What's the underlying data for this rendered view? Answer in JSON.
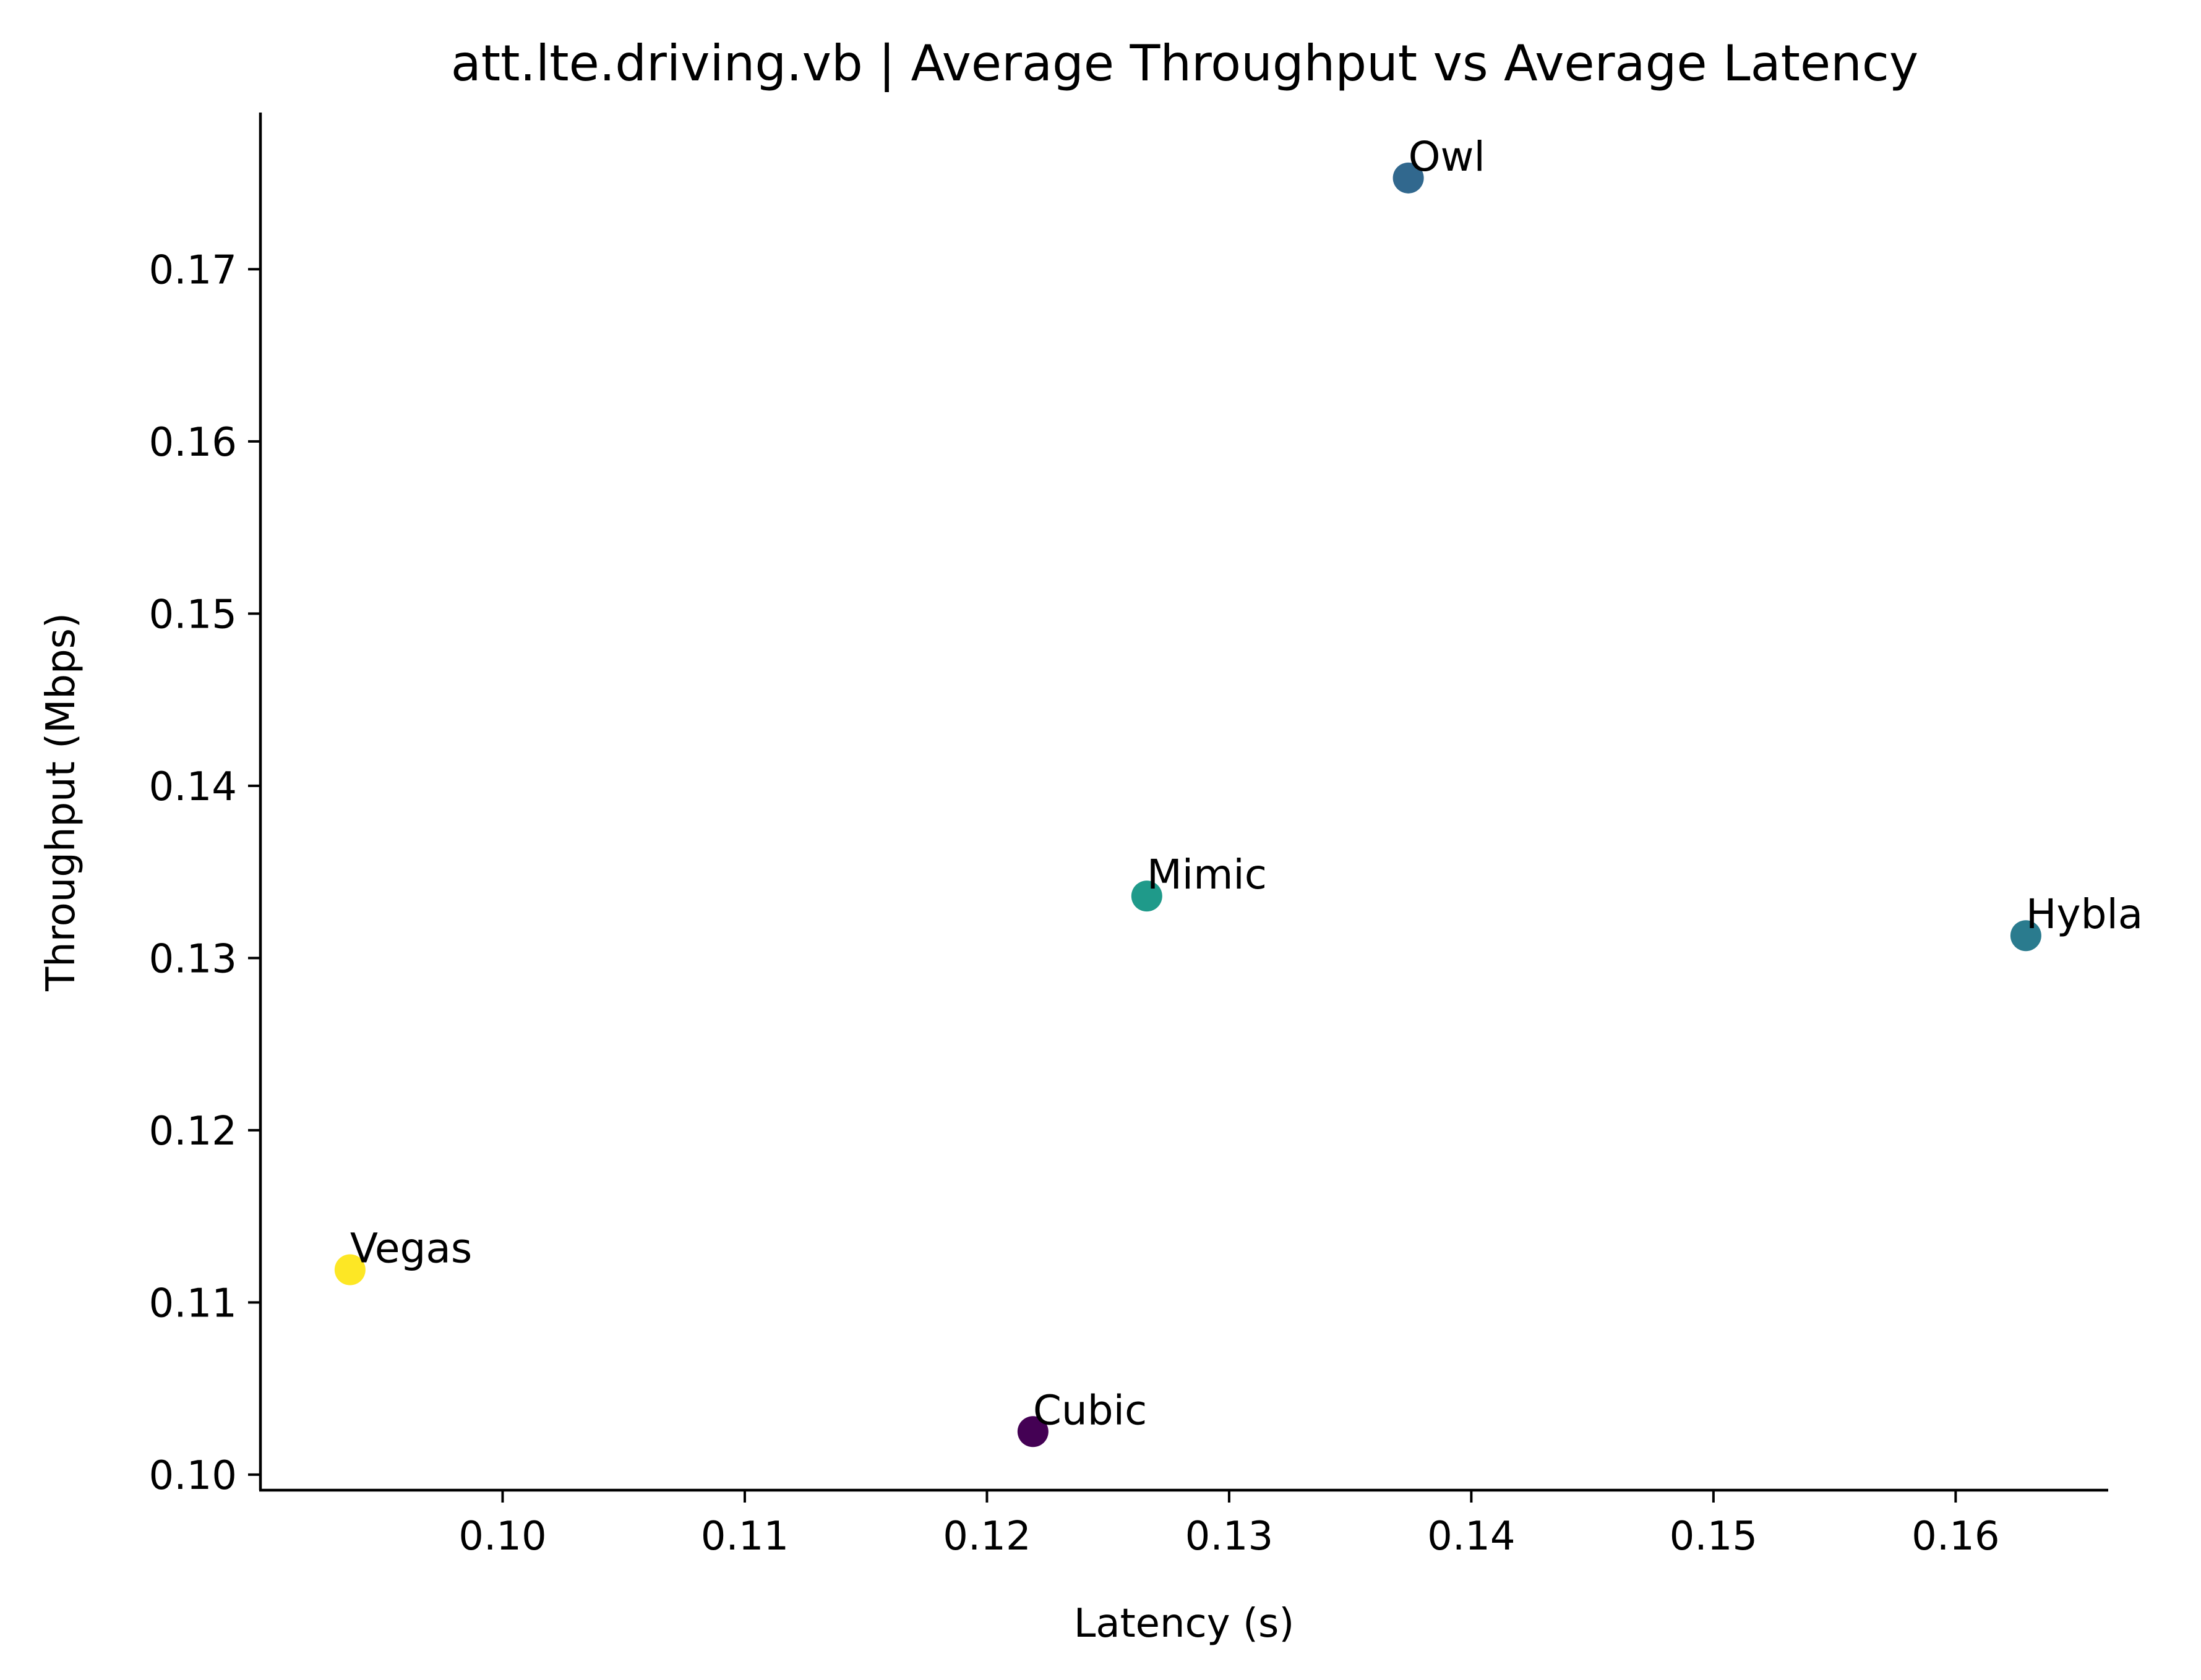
{
  "chart_data": {
    "type": "scatter",
    "title": "att.lte.driving.vb | Average Throughput vs Average Latency",
    "xlabel": "Latency (s)",
    "ylabel": "Throughput (Mbps)",
    "xlim": [
      0.09,
      0.1663
    ],
    "ylim": [
      0.0991,
      0.1791
    ],
    "xticks": [
      0.1,
      0.11,
      0.12,
      0.13,
      0.14,
      0.15,
      0.16
    ],
    "yticks": [
      0.1,
      0.11,
      0.12,
      0.13,
      0.14,
      0.15,
      0.16,
      0.17
    ],
    "xtick_labels": [
      "0.10",
      "0.11",
      "0.12",
      "0.13",
      "0.14",
      "0.15",
      "0.16"
    ],
    "ytick_labels": [
      "0.10",
      "0.11",
      "0.12",
      "0.13",
      "0.14",
      "0.15",
      "0.16",
      "0.17"
    ],
    "grid": false,
    "points": [
      {
        "label": "Owl",
        "x": 0.1374,
        "y": 0.1753,
        "color": "#31688e"
      },
      {
        "label": "Mimic",
        "x": 0.1266,
        "y": 0.1336,
        "color": "#1f9a8a"
      },
      {
        "label": "Hybla",
        "x": 0.1629,
        "y": 0.1313,
        "color": "#2a7b8e"
      },
      {
        "label": "Vegas",
        "x": 0.0937,
        "y": 0.1119,
        "color": "#fde725"
      },
      {
        "label": "Cubic",
        "x": 0.1219,
        "y": 0.1025,
        "color": "#440154"
      }
    ]
  }
}
